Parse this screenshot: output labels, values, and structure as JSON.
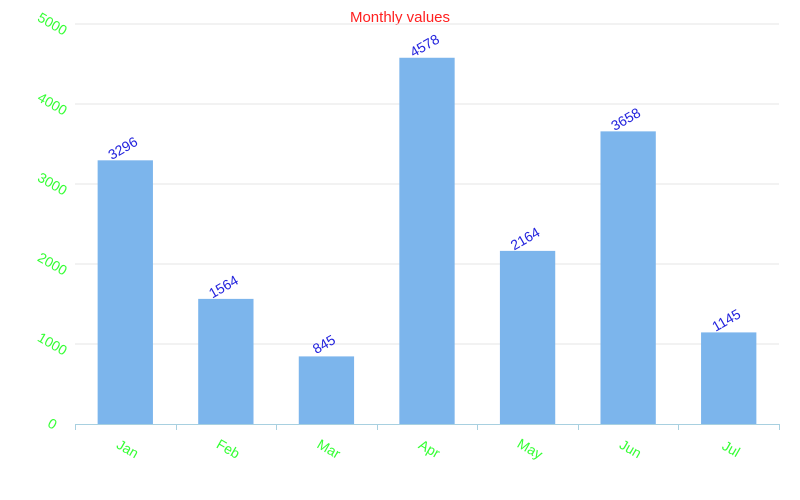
{
  "chart_data": {
    "type": "bar",
    "title": "Monthly values",
    "categories": [
      "Jan",
      "Feb",
      "Mar",
      "Apr",
      "May",
      "Jun",
      "Jul"
    ],
    "values": [
      3296,
      1564,
      845,
      4578,
      2164,
      3658,
      1145
    ],
    "ylim": [
      0,
      5000
    ],
    "yticks": [
      0,
      1000,
      2000,
      3000,
      4000,
      5000
    ],
    "grid": true,
    "xlabel": "",
    "ylabel": "",
    "colors": {
      "bar": "#7cb5ec",
      "title": "#ff2020",
      "tick_labels": "#33ff33",
      "data_labels": "#2222dd",
      "grid": "#e6e6e6",
      "axis": "#a8d0e0"
    }
  }
}
